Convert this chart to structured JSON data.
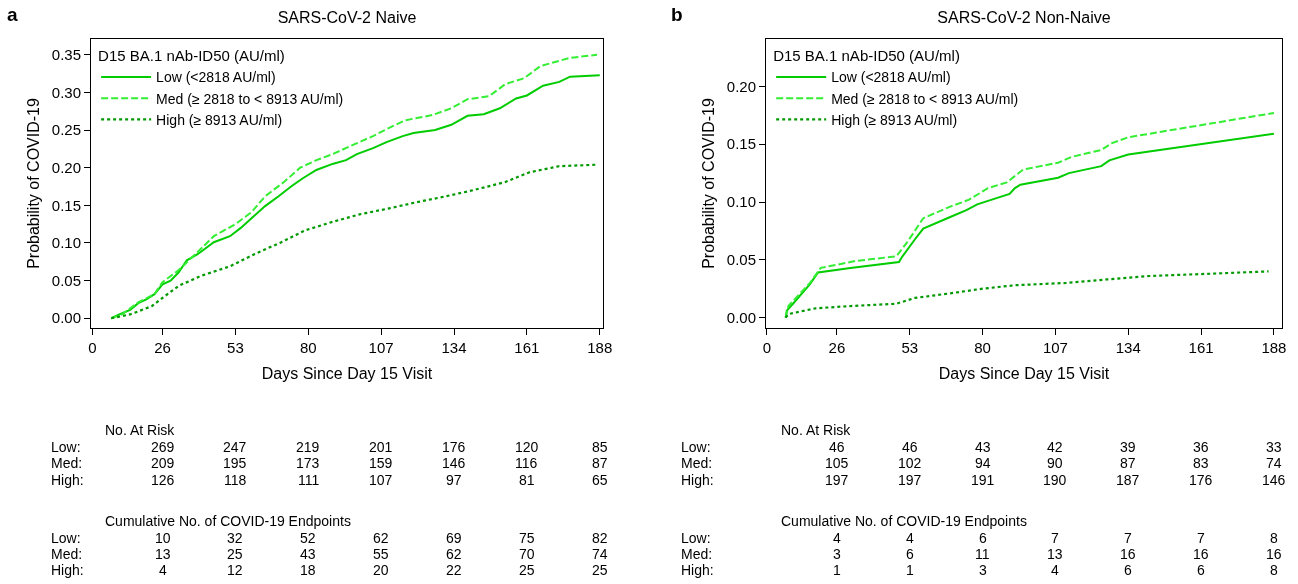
{
  "chart_data": [
    {
      "type": "line",
      "title": "SARS-CoV-2 Naive",
      "xlabel": "Days Since Day 15 Visit",
      "ylabel": "Probability of COVID-19",
      "legend_title": "D15 BA.1 nAb-ID50 (AU/ml)",
      "legend": "top left",
      "grid": false,
      "xlim": [
        -0.5,
        189.2
      ],
      "xticks": [
        0,
        26,
        53,
        80,
        107,
        134,
        161,
        188
      ],
      "ylim": [
        -0.013,
        0.371
      ],
      "yticks": [
        {
          "value": 0,
          "label": "0.00"
        },
        {
          "value": 0.05,
          "label": "0.05"
        },
        {
          "value": 0.1,
          "label": "0.10"
        },
        {
          "value": 0.15,
          "label": "0.15"
        },
        {
          "value": 0.2,
          "label": "0.20"
        },
        {
          "value": 0.25,
          "label": "0.25"
        },
        {
          "value": 0.3,
          "label": "0.30"
        },
        {
          "value": 0.35,
          "label": "0.35"
        }
      ],
      "series": [
        {
          "name": "Low (<2818 AU/ml)",
          "color": "#00cc00",
          "line_style": "solid",
          "x": [
            7,
            10,
            14,
            17,
            20,
            23,
            26,
            29,
            32,
            35,
            39,
            42,
            45,
            51,
            55,
            60,
            64,
            69,
            74,
            78,
            83,
            89,
            94,
            98,
            104,
            109,
            115,
            119,
            127,
            133,
            139,
            145,
            151,
            157,
            161,
            167,
            173,
            177,
            188
          ],
          "values": [
            0,
            0.005,
            0.011,
            0.02,
            0.025,
            0.032,
            0.045,
            0.05,
            0.061,
            0.077,
            0.085,
            0.093,
            0.101,
            0.109,
            0.12,
            0.136,
            0.149,
            0.162,
            0.176,
            0.186,
            0.197,
            0.205,
            0.21,
            0.218,
            0.226,
            0.234,
            0.242,
            0.246,
            0.25,
            0.257,
            0.269,
            0.271,
            0.279,
            0.292,
            0.296,
            0.309,
            0.314,
            0.321,
            0.323
          ]
        },
        {
          "name": "Med (≥ 2818 to < 8913 AU/ml)",
          "color": "#33ee33",
          "line_style": "dashed",
          "x": [
            7,
            11,
            17,
            23,
            26,
            32,
            39,
            45,
            53,
            59,
            64,
            71,
            77,
            83,
            89,
            97,
            104,
            110,
            116,
            126,
            133,
            139,
            147,
            153,
            160,
            166,
            177,
            187
          ],
          "values": [
            0,
            0.005,
            0.021,
            0.032,
            0.048,
            0.064,
            0.088,
            0.109,
            0.125,
            0.141,
            0.162,
            0.181,
            0.2,
            0.21,
            0.218,
            0.231,
            0.242,
            0.253,
            0.263,
            0.27,
            0.279,
            0.291,
            0.295,
            0.311,
            0.319,
            0.335,
            0.346,
            0.35
          ]
        },
        {
          "name": "High (≥ 8913 AU/ml)",
          "color": "#009900",
          "line_style": "dotted",
          "x": [
            7,
            14,
            22,
            26,
            32,
            40,
            51,
            60,
            70,
            79,
            89,
            99,
            110,
            120,
            131,
            141,
            153,
            162,
            173,
            187
          ],
          "values": [
            0,
            0.005,
            0.016,
            0.027,
            0.043,
            0.056,
            0.069,
            0.085,
            0.101,
            0.117,
            0.128,
            0.138,
            0.146,
            0.154,
            0.162,
            0.17,
            0.181,
            0.194,
            0.202,
            0.204
          ]
        }
      ],
      "annotations": [
        "a",
        "No. At Risk",
        "Low: 269 247 219 201 176 120 85",
        "Med: 209 195 173 159 146 116 87",
        "High: 126 118 111 107 97 81 65",
        "Cumulative No. of COVID-19 Endpoints",
        "Low: 10 32 52 62 69 75 82",
        "Med: 13 25 43 55 62 70 74",
        "High: 4 12 18 20 22 25 25"
      ]
    },
    {
      "type": "line",
      "title": "SARS-CoV-2 Non-Naive",
      "xlabel": "Days Since Day 15 Visit",
      "ylabel": "Probability of COVID-19",
      "legend_title": "D15 BA.1 nAb-ID50 (AU/ml)",
      "legend": "top left",
      "grid": false,
      "xlim": [
        -0.3,
        191
      ],
      "xticks": [
        0,
        26,
        53,
        80,
        107,
        134,
        161,
        188
      ],
      "ylim": [
        -0.009,
        0.241
      ],
      "yticks": [
        {
          "value": 0,
          "label": "0.00"
        },
        {
          "value": 0.05,
          "label": "0.05"
        },
        {
          "value": 0.1,
          "label": "0.10"
        },
        {
          "value": 0.15,
          "label": "0.15"
        },
        {
          "value": 0.2,
          "label": "0.20"
        }
      ],
      "series": [
        {
          "name": "Low (<2818 AU/ml)",
          "color": "#00cc00",
          "line_style": "solid",
          "x": [
            7,
            7.4,
            9.7,
            16,
            19,
            31,
            49,
            50,
            55,
            58,
            68,
            74,
            78,
            82,
            90,
            92,
            94,
            108,
            112,
            124,
            127,
            134,
            188
          ],
          "values": [
            0,
            0.006,
            0.012,
            0.029,
            0.039,
            0.043,
            0.048,
            0.052,
            0.068,
            0.077,
            0.087,
            0.093,
            0.098,
            0.101,
            0.107,
            0.112,
            0.115,
            0.121,
            0.125,
            0.131,
            0.136,
            0.141,
            0.159
          ]
        },
        {
          "name": "Med (≥ 2818 to < 8913 AU/ml)",
          "color": "#33ee33",
          "line_style": "dashed",
          "x": [
            7,
            8,
            16,
            20,
            33,
            48,
            52,
            58,
            68,
            75,
            82,
            89,
            95,
            108,
            113,
            124,
            128,
            134,
            188
          ],
          "values": [
            0,
            0.01,
            0.03,
            0.043,
            0.049,
            0.053,
            0.065,
            0.086,
            0.096,
            0.102,
            0.112,
            0.117,
            0.128,
            0.134,
            0.139,
            0.145,
            0.151,
            0.156,
            0.177
          ]
        },
        {
          "name": "High (≥ 8913 AU/ml)",
          "color": "#009900",
          "line_style": "dotted",
          "x": [
            7,
            8,
            18,
            31,
            48,
            55,
            68,
            80,
            92,
            111,
            126,
            142,
            165,
            186
          ],
          "values": [
            0,
            0.003,
            0.008,
            0.01,
            0.012,
            0.017,
            0.021,
            0.025,
            0.028,
            0.03,
            0.033,
            0.036,
            0.038,
            0.04
          ]
        }
      ],
      "annotations": [
        "b",
        "No. At Risk",
        "Low: 46 46 43 42 39 36 33",
        "Med: 105 102 94 90 87 83 74",
        "High: 197 197 191 190 187 176 146",
        "Cumulative No. of COVID-19 Endpoints",
        "Low: 4 4 6 7 7 7 8",
        "Med: 3 6 11 13 16 16 16",
        "High: 1 1 3 4 6 6 8"
      ]
    }
  ]
}
